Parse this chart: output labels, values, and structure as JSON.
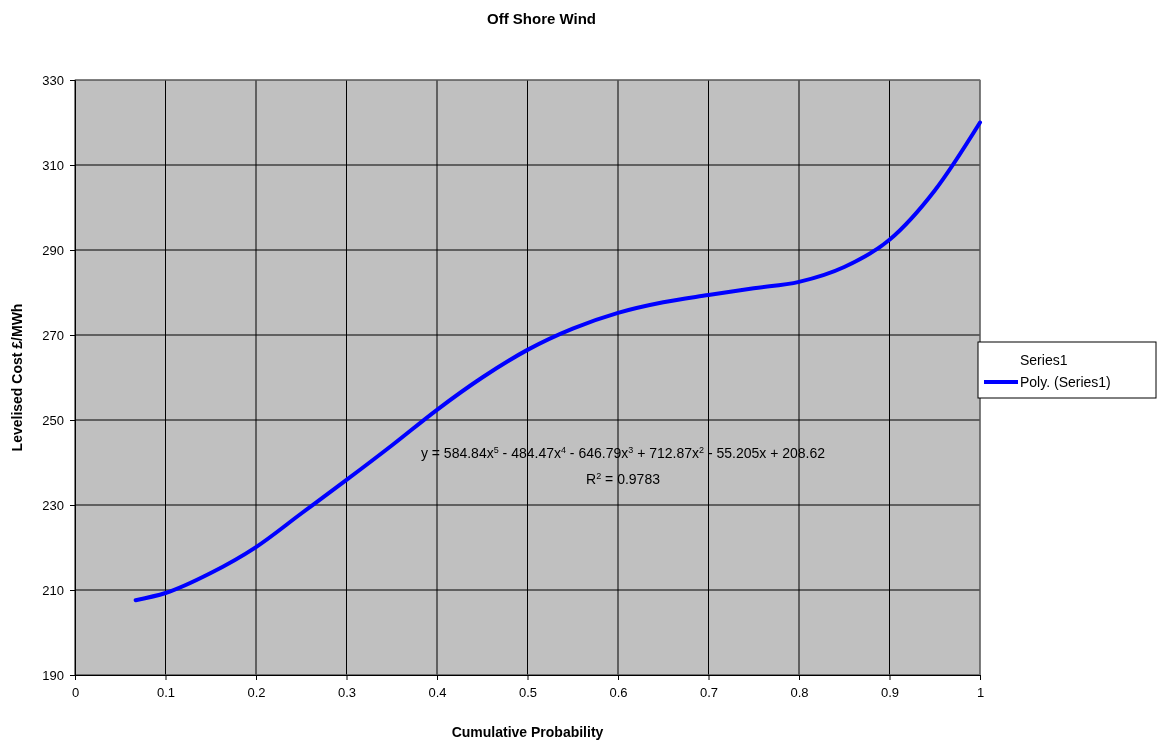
{
  "chart_data": {
    "type": "line",
    "title": "Off Shore Wind",
    "xlabel": "Cumulative Probability",
    "ylabel": "Levelised Cost £/MWh",
    "x": [
      0.067,
      0.1,
      0.15,
      0.2,
      0.25,
      0.3,
      0.35,
      0.4,
      0.45,
      0.5,
      0.55,
      0.6,
      0.65,
      0.7,
      0.75,
      0.8,
      0.85,
      0.9,
      0.95,
      1.0
    ],
    "series": [
      {
        "name": "Series1",
        "values": [
          null,
          null,
          null,
          null,
          null,
          null,
          null,
          null,
          null,
          null,
          null,
          null,
          null,
          null,
          null,
          null,
          null,
          null,
          null,
          null
        ]
      },
      {
        "name": "Poly. (Series1)",
        "color": "#0000ff",
        "values": [
          207.6,
          209.3,
          214,
          220.1,
          228,
          235.9,
          244,
          252.4,
          260,
          266.5,
          271.5,
          275.2,
          277.7,
          279.4,
          281,
          282.5,
          286,
          292.4,
          304,
          320
        ]
      }
    ],
    "xlim": [
      0,
      1
    ],
    "xticks": [
      0,
      0.1,
      0.2,
      0.3,
      0.4,
      0.5,
      0.6,
      0.7,
      0.8,
      0.9,
      1
    ],
    "ylim": [
      190,
      330
    ],
    "yticks": [
      190,
      210,
      230,
      250,
      270,
      290,
      310,
      330
    ],
    "grid": true,
    "legend": "right",
    "marker": "none",
    "line_style": "solid",
    "annotations": [
      "y = 584.84x$^{5}$ - 484.47x$^{4}$ - 646.79x$^{3}$ + 712.87x$^{2}$ - 55.205x + 208.62",
      "R$^{2}$ = 0.9783"
    ]
  }
}
